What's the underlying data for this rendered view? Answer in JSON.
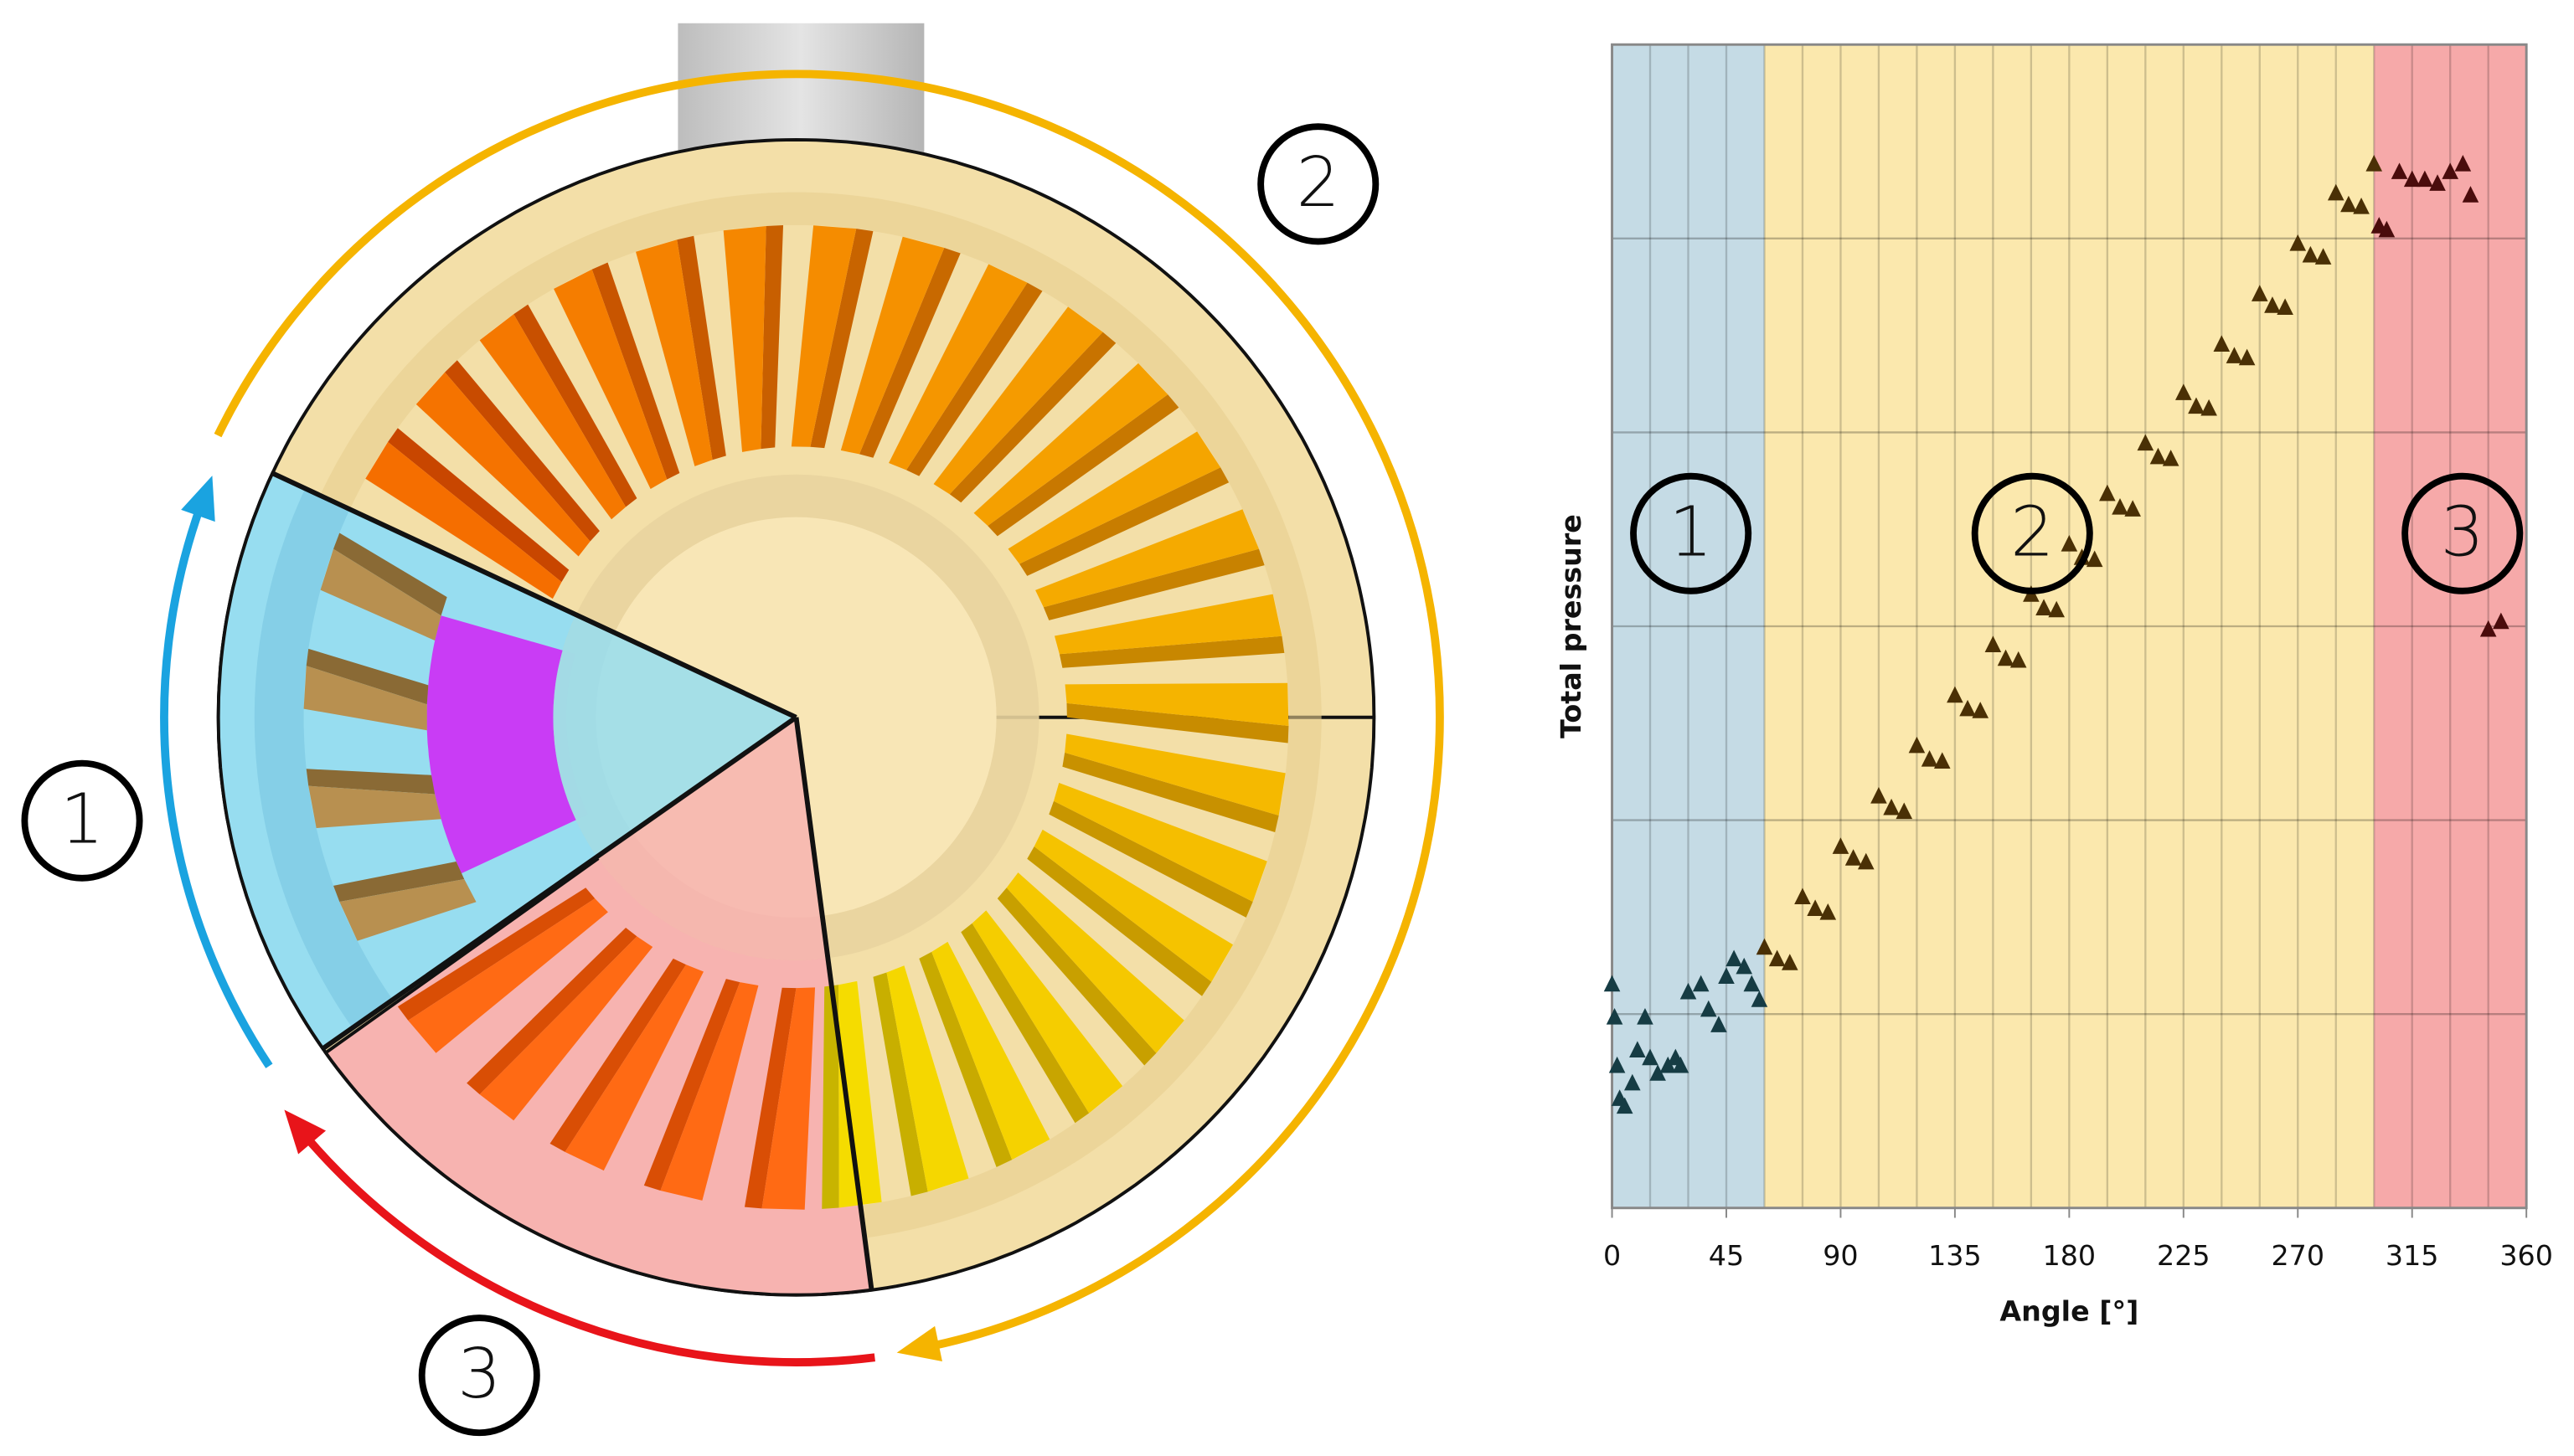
{
  "diagram": {
    "labels": [
      "1",
      "2",
      "3"
    ]
  },
  "chart_data": {
    "type": "scatter",
    "xlabel": "Angle [°]",
    "ylabel": "Total pressure",
    "xlim": [
      0,
      360
    ],
    "xticks": [
      0,
      45,
      90,
      135,
      180,
      225,
      270,
      315,
      360
    ],
    "ylim": [
      0,
      6
    ],
    "ygrid": [
      0,
      1,
      2,
      3,
      4,
      5,
      6
    ],
    "xgrid": [
      0,
      15,
      30,
      45,
      60,
      75,
      90,
      105,
      120,
      135,
      150,
      165,
      180,
      195,
      210,
      225,
      240,
      255,
      270,
      285,
      300,
      315,
      330,
      345,
      360
    ],
    "regions": [
      {
        "label": "1",
        "range": [
          0,
          60
        ],
        "color": "#c5dbe5"
      },
      {
        "label": "2",
        "range": [
          60,
          300
        ],
        "color": "#fbe8ad"
      },
      {
        "label": "3",
        "range": [
          300,
          360
        ],
        "color": "#f6a9a9"
      }
    ],
    "series": [
      {
        "color": "#163c44",
        "x": [
          0,
          1,
          2,
          3,
          5,
          8,
          10,
          13,
          15,
          18,
          22,
          25,
          27,
          30,
          35,
          38,
          42,
          45,
          48,
          52,
          55,
          58
        ],
        "values": [
          1.15,
          0.98,
          0.73,
          0.56,
          0.52,
          0.64,
          0.81,
          0.98,
          0.77,
          0.69,
          0.73,
          0.77,
          0.73,
          1.11,
          1.15,
          1.02,
          0.94,
          1.19,
          1.28,
          1.24,
          1.15,
          1.07
        ]
      },
      {
        "color": "#4a3005",
        "x": [
          60,
          65,
          70,
          75,
          80,
          85,
          90,
          95,
          100,
          105,
          110,
          115,
          120,
          125,
          130,
          135,
          140,
          145,
          150,
          155,
          160,
          165,
          170,
          175,
          180,
          185,
          190,
          195,
          200,
          205,
          210,
          215,
          220,
          225,
          230,
          235,
          240,
          245,
          250,
          255,
          260,
          265,
          270,
          275,
          280,
          285,
          290,
          295,
          300
        ],
        "values": [
          1.34,
          1.28,
          1.26,
          1.6,
          1.54,
          1.52,
          1.86,
          1.8,
          1.78,
          2.12,
          2.06,
          2.04,
          2.38,
          2.31,
          2.3,
          2.64,
          2.57,
          2.56,
          2.9,
          2.83,
          2.82,
          3.16,
          3.09,
          3.08,
          3.42,
          3.35,
          3.34,
          3.68,
          3.61,
          3.6,
          3.94,
          3.87,
          3.86,
          4.2,
          4.13,
          4.12,
          4.45,
          4.39,
          4.38,
          4.71,
          4.65,
          4.64,
          4.97,
          4.91,
          4.9,
          5.23,
          5.17,
          5.16,
          5.38
        ]
      },
      {
        "color": "#4a0c0c",
        "x": [
          302,
          305,
          310,
          315,
          320,
          325,
          330,
          335,
          338,
          345,
          350
        ],
        "values": [
          5.06,
          5.04,
          5.34,
          5.3,
          5.3,
          5.28,
          5.34,
          5.38,
          5.22,
          2.98,
          3.02
        ]
      }
    ]
  }
}
